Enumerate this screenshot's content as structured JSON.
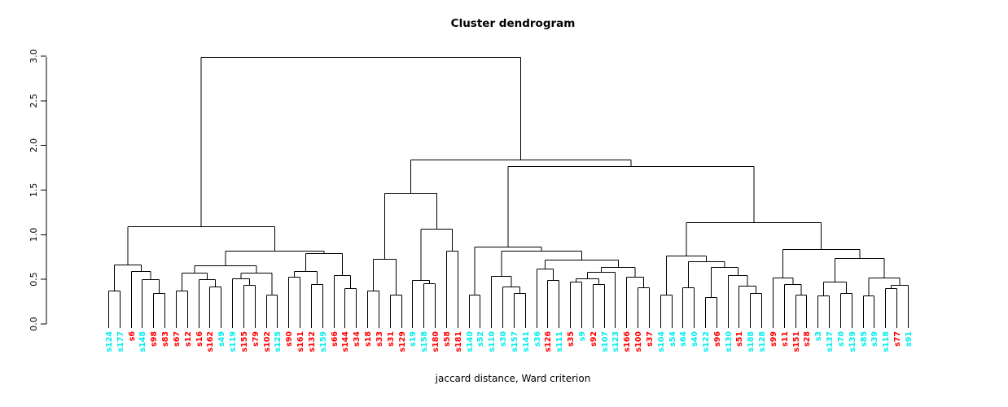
{
  "title": "Cluster dendrogram",
  "xlabel": "jaccard distance, Ward criterion",
  "chart_data": {
    "type": "dendrogram",
    "ylim": [
      0.0,
      3.0
    ],
    "y_ticks": [
      "0.0",
      "0.5",
      "1.0",
      "1.5",
      "2.0",
      "2.5",
      "3.0"
    ],
    "grid": "off",
    "line_color": "#000000",
    "label_colors": {
      "cyan": "#00eded",
      "red": "#ff0000"
    },
    "leaves": [
      {
        "label": "s124",
        "color": "cyan"
      },
      {
        "label": "s177",
        "color": "cyan"
      },
      {
        "label": "s6",
        "color": "red"
      },
      {
        "label": "s148",
        "color": "cyan"
      },
      {
        "label": "s98",
        "color": "red"
      },
      {
        "label": "s83",
        "color": "red"
      },
      {
        "label": "s67",
        "color": "red"
      },
      {
        "label": "s12",
        "color": "red"
      },
      {
        "label": "s16",
        "color": "red"
      },
      {
        "label": "s162",
        "color": "red"
      },
      {
        "label": "s49",
        "color": "cyan"
      },
      {
        "label": "s119",
        "color": "cyan"
      },
      {
        "label": "s155",
        "color": "red"
      },
      {
        "label": "s79",
        "color": "red"
      },
      {
        "label": "s102",
        "color": "red"
      },
      {
        "label": "s125",
        "color": "cyan"
      },
      {
        "label": "s90",
        "color": "red"
      },
      {
        "label": "s161",
        "color": "red"
      },
      {
        "label": "s132",
        "color": "red"
      },
      {
        "label": "s159",
        "color": "cyan"
      },
      {
        "label": "s66",
        "color": "red"
      },
      {
        "label": "s144",
        "color": "red"
      },
      {
        "label": "s34",
        "color": "red"
      },
      {
        "label": "s18",
        "color": "red"
      },
      {
        "label": "s33",
        "color": "red"
      },
      {
        "label": "s31",
        "color": "red"
      },
      {
        "label": "s129",
        "color": "red"
      },
      {
        "label": "s19",
        "color": "cyan"
      },
      {
        "label": "s158",
        "color": "cyan"
      },
      {
        "label": "s180",
        "color": "red"
      },
      {
        "label": "s58",
        "color": "red"
      },
      {
        "label": "s181",
        "color": "red"
      },
      {
        "label": "s140",
        "color": "cyan"
      },
      {
        "label": "s52",
        "color": "cyan"
      },
      {
        "label": "s110",
        "color": "cyan"
      },
      {
        "label": "s30",
        "color": "cyan"
      },
      {
        "label": "s157",
        "color": "cyan"
      },
      {
        "label": "s141",
        "color": "cyan"
      },
      {
        "label": "s36",
        "color": "cyan"
      },
      {
        "label": "s126",
        "color": "red"
      },
      {
        "label": "s111",
        "color": "cyan"
      },
      {
        "label": "s35",
        "color": "red"
      },
      {
        "label": "s9",
        "color": "cyan"
      },
      {
        "label": "s92",
        "color": "red"
      },
      {
        "label": "s107",
        "color": "cyan"
      },
      {
        "label": "s123",
        "color": "cyan"
      },
      {
        "label": "s166",
        "color": "red"
      },
      {
        "label": "s100",
        "color": "red"
      },
      {
        "label": "s37",
        "color": "red"
      },
      {
        "label": "s104",
        "color": "cyan"
      },
      {
        "label": "s54",
        "color": "cyan"
      },
      {
        "label": "s64",
        "color": "cyan"
      },
      {
        "label": "s40",
        "color": "cyan"
      },
      {
        "label": "s122",
        "color": "cyan"
      },
      {
        "label": "s96",
        "color": "red"
      },
      {
        "label": "s130",
        "color": "cyan"
      },
      {
        "label": "s51",
        "color": "red"
      },
      {
        "label": "s188",
        "color": "cyan"
      },
      {
        "label": "s128",
        "color": "cyan"
      },
      {
        "label": "s99",
        "color": "red"
      },
      {
        "label": "s11",
        "color": "red"
      },
      {
        "label": "s151",
        "color": "red"
      },
      {
        "label": "s28",
        "color": "red"
      },
      {
        "label": "s3",
        "color": "cyan"
      },
      {
        "label": "s137",
        "color": "cyan"
      },
      {
        "label": "s70",
        "color": "cyan"
      },
      {
        "label": "s139",
        "color": "cyan"
      },
      {
        "label": "s85",
        "color": "cyan"
      },
      {
        "label": "s39",
        "color": "cyan"
      },
      {
        "label": "s118",
        "color": "cyan"
      },
      {
        "label": "s77",
        "color": "red"
      },
      {
        "label": "s91",
        "color": "cyan"
      }
    ],
    "tree": [
      2.99,
      [
        1.09,
        [
          0.67,
          [
            0.37,
            "s124",
            "s177"
          ],
          [
            0.59,
            "s6",
            [
              0.5,
              "s148",
              [
                0.35,
                "s98",
                "s83"
              ]
            ]
          ]
        ],
        [
          0.82,
          [
            0.66,
            [
              0.57,
              [
                0.37,
                "s67",
                "s12"
              ],
              [
                0.5,
                "s16",
                [
                  0.42,
                  "s162",
                  "s49"
                ]
              ]
            ],
            [
              0.57,
              [
                0.51,
                "s119",
                [
                  0.44,
                  "s155",
                  "s79"
                ]
              ],
              [
                0.33,
                "s102",
                "s125"
              ]
            ]
          ],
          [
            0.79,
            [
              0.59,
              [
                0.53,
                "s90",
                "s161"
              ],
              [
                0.45,
                "s132",
                "s159"
              ]
            ],
            [
              0.55,
              "s66",
              [
                0.4,
                "s144",
                "s34"
              ]
            ]
          ]
        ]
      ],
      [
        1.84,
        [
          1.47,
          [
            0.73,
            [
              0.37,
              "s18",
              "s33"
            ],
            [
              0.33,
              "s31",
              "s129"
            ]
          ],
          [
            1.07,
            [
              0.49,
              "s19",
              [
                0.46,
                "s158",
                "s180"
              ]
            ],
            [
              0.82,
              "s58",
              "s181"
            ]
          ]
        ],
        [
          1.77,
          [
            0.87,
            [
              0.33,
              "s140",
              "s52"
            ],
            [
              0.82,
              [
                0.54,
                "s110",
                [
                  0.42,
                  "s30",
                  [
                    0.35,
                    "s157",
                    "s141"
                  ]
                ]
              ],
              [
                0.72,
                [
                  0.62,
                  "s36",
                  [
                    0.49,
                    "s126",
                    "s111"
                  ]
                ],
                [
                  0.64,
                  [
                    0.58,
                    [
                      0.51,
                      [
                        0.47,
                        "s35",
                        "s9"
                      ],
                      [
                        0.45,
                        "s92",
                        "s107"
                      ]
                    ],
                    "s123"
                  ],
                  [
                    0.53,
                    "s166",
                    [
                      0.41,
                      "s100",
                      "s37"
                    ]
                  ]
                ]
              ]
            ]
          ],
          [
            1.14,
            [
              0.77,
              [
                0.33,
                "s104",
                "s54"
              ],
              [
                0.7,
                [
                  0.41,
                  "s64",
                  "s40"
                ],
                [
                  0.64,
                  [
                    0.3,
                    "s122",
                    "s96"
                  ],
                  [
                    0.55,
                    "s130",
                    [
                      0.43,
                      "s51",
                      [
                        0.35,
                        "s188",
                        "s128"
                      ]
                    ]
                  ]
                ]
              ]
            ],
            [
              0.84,
              [
                0.52,
                "s99",
                [
                  0.45,
                  "s11",
                  [
                    0.33,
                    "s151",
                    "s28"
                  ]
                ]
              ],
              [
                0.74,
                [
                  0.47,
                  [
                    0.32,
                    "s3",
                    "s137"
                  ],
                  [
                    0.35,
                    "s70",
                    "s139"
                  ]
                ],
                [
                  0.52,
                  [
                    0.32,
                    "s85",
                    "s39"
                  ],
                  [
                    0.44,
                    [
                      0.4,
                      "s118",
                      "s77"
                    ],
                    "s91"
                  ]
                ]
              ]
            ]
          ]
        ]
      ]
    ]
  }
}
